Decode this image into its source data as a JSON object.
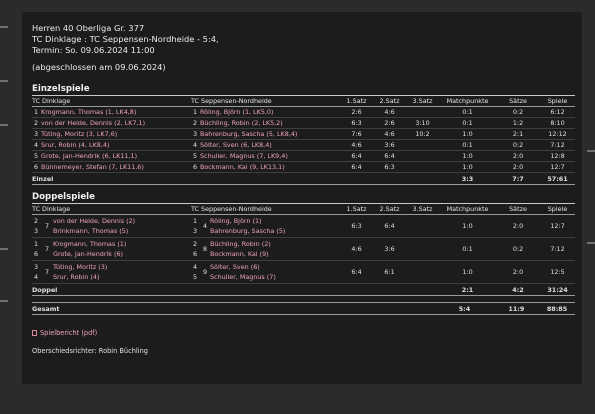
{
  "header": {
    "league": "Herren 40 Oberliga Gr. 377",
    "match": "TC Dinklage : TC Seppensen-Nordheide - 5:4,",
    "date": "Termin: So. 09.06.2024 11:00",
    "status": "(abgeschlossen am 09.06.2024)"
  },
  "columns": {
    "home": "TC Dinklage",
    "away": "TC Seppensen-Nordheide",
    "set1": "1.Satz",
    "set2": "2.Satz",
    "set3": "3.Satz",
    "matchpoints": "Matchpunkte",
    "saetze": "Sätze",
    "spiele": "Spiele"
  },
  "einzel": {
    "title": "Einzelspiele",
    "rows": [
      {
        "hn": "1",
        "home": "Krogmann, Thomas (1, LK4,8)",
        "an": "1",
        "away": "Röling, Björn (1, LK5,0)",
        "s1": "2:6",
        "s2": "4:6",
        "s3": "",
        "mp": "0:1",
        "saetze": "0:2",
        "spiele": "6:12"
      },
      {
        "hn": "2",
        "home": "von der Heide, Dennis (2, LK7,1)",
        "an": "2",
        "away": "Büchling, Robin (2, LK5,2)",
        "s1": "6:3",
        "s2": "2:6",
        "s3": "3:10",
        "mp": "0:1",
        "saetze": "1:2",
        "spiele": "8:10"
      },
      {
        "hn": "3",
        "home": "Tüting, Moritz (3, LK7,6)",
        "an": "3",
        "away": "Bahrenburg, Sascha (5, LK8,4)",
        "s1": "7:6",
        "s2": "4:6",
        "s3": "10:2",
        "mp": "1:0",
        "saetze": "2:1",
        "spiele": "12:12"
      },
      {
        "hn": "4",
        "home": "Srur, Robin (4, LK8,4)",
        "an": "4",
        "away": "Sölter, Sven (6, LK8,4)",
        "s1": "4:6",
        "s2": "3:6",
        "s3": "",
        "mp": "0:1",
        "saetze": "0:2",
        "spiele": "7:12"
      },
      {
        "hn": "5",
        "home": "Grote, Jan-Hendrik (6, LK11,1)",
        "an": "5",
        "away": "Schuller, Magnus (7, LK9,4)",
        "s1": "6:4",
        "s2": "6:4",
        "s3": "",
        "mp": "1:0",
        "saetze": "2:0",
        "spiele": "12:8"
      },
      {
        "hn": "6",
        "home": "Bünnemeyer, Stefan (7, LK11,6)",
        "an": "6",
        "away": "Bockmann, Kai (9, LK13,1)",
        "s1": "6:4",
        "s2": "6:3",
        "s3": "",
        "mp": "1:0",
        "saetze": "2:0",
        "spiele": "12:7"
      }
    ],
    "summary": {
      "label": "Einzel",
      "mp": "3:3",
      "saetze": "7:7",
      "spiele": "57:61"
    }
  },
  "doppel": {
    "title": "Doppelspiele",
    "rows": [
      {
        "hnums": [
          "2",
          "3"
        ],
        "hpair": "7",
        "home": [
          "von der Heide, Dennis (2)",
          "Brinkmann, Thomas (5)"
        ],
        "anums": [
          "1",
          "3"
        ],
        "apair": "4",
        "away": [
          "Röling, Björn (1)",
          "Bahrenburg, Sascha (5)"
        ],
        "s1": "6:3",
        "s2": "6:4",
        "s3": "",
        "mp": "1:0",
        "saetze": "2:0",
        "spiele": "12:7"
      },
      {
        "hnums": [
          "1",
          "6"
        ],
        "hpair": "7",
        "home": [
          "Krogmann, Thomas (1)",
          "Grote, Jan-Hendrik (6)"
        ],
        "anums": [
          "2",
          "6"
        ],
        "apair": "8",
        "away": [
          "Büchling, Robin (2)",
          "Bockmann, Kai (9)"
        ],
        "s1": "4:6",
        "s2": "3:6",
        "s3": "",
        "mp": "0:1",
        "saetze": "0:2",
        "spiele": "7:12"
      },
      {
        "hnums": [
          "3",
          "4"
        ],
        "hpair": "7",
        "home": [
          "Tüting, Moritz (3)",
          "Srur, Robin (4)"
        ],
        "anums": [
          "4",
          "5"
        ],
        "apair": "9",
        "away": [
          "Sölter, Sven (6)",
          "Schuller, Magnus (7)"
        ],
        "s1": "6:4",
        "s2": "6:1",
        "s3": "",
        "mp": "1:0",
        "saetze": "2:0",
        "spiele": "12:5"
      }
    ],
    "summary": {
      "label": "Doppel",
      "mp": "2:1",
      "saetze": "4:2",
      "spiele": "31:24"
    }
  },
  "gesamt": {
    "label": "Gesamt",
    "mp": "5:4",
    "saetze": "11:9",
    "spiele": "88:85"
  },
  "footer": {
    "report_link": "Spielbericht (pdf)",
    "referee": "Oberschiedsrichter: Robin Büchling"
  }
}
